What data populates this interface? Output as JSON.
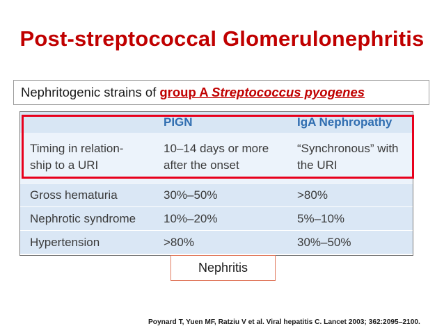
{
  "slide": {
    "title": "Post-streptococcal Glomerulonephritis",
    "subtitle_prefix": "Nephritogenic strains of",
    "subtitle_highlight_plain": "group A ",
    "subtitle_highlight_italic": "Streptococcus pyogenes",
    "callout": "Nephritis",
    "citation": "Poynard T, Yuen MF, Ratziu V et al. Viral hepatitis C. Lancet 2003; 362:2095–2100.",
    "colors": {
      "title": "#c00000",
      "highlight_box": "#e8001c",
      "table_header_text": "#2f6db0",
      "table_row_bg": "#dae7f5"
    }
  },
  "table": {
    "headers": [
      "",
      "PIGN",
      "IgA Nephropathy"
    ],
    "top_row": {
      "label_line1": "Timing in relation-",
      "label_line2": "ship to a URI",
      "pign_line1": "10–14 days or more",
      "pign_line2": "after the onset",
      "iga_line1": "“Synchronous” with",
      "iga_line2": "the URI"
    },
    "rows": [
      {
        "label": "Gross hematuria",
        "pign": "30%–50%",
        "iga": ">80%"
      },
      {
        "label": "Nephrotic syndrome",
        "pign": "10%–20%",
        "iga": "5%–10%"
      },
      {
        "label": "Hypertension",
        "pign": ">80%",
        "iga": "30%–50%"
      }
    ]
  }
}
